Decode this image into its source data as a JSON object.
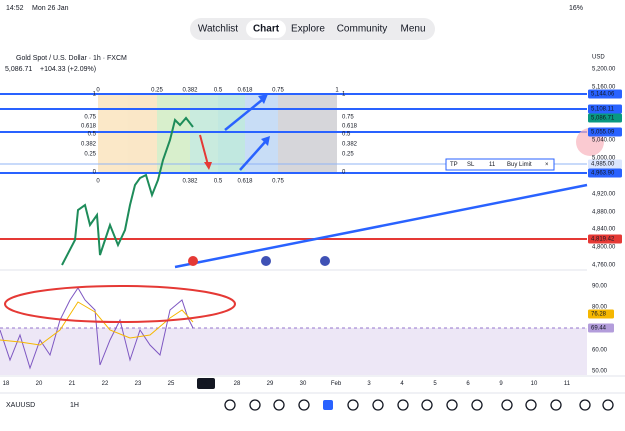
{
  "status_bar": {
    "time": "14:52",
    "date": "Mon 26 Jan",
    "battery": "16%"
  },
  "nav_tabs": [
    "Watchlist",
    "Chart",
    "Explore",
    "Community",
    "Menu"
  ],
  "header": {
    "symbol": "Gold Spot / U.S. Dollar · 1h · FXCM",
    "price": "5,086.71",
    "change": "+104.33 (+2.09%)",
    "currency": "USD"
  },
  "price_axis": [
    "5,200.00",
    "5,160.00",
    "5,040.00",
    "5,000.00",
    "4,920.00",
    "4,880.00",
    "4,840.00",
    "4,800.00",
    "4,760.00"
  ],
  "price_tags": [
    "5,144.06",
    "5,108.11",
    "5,086.71",
    "5,055.09",
    "4,985.00",
    "4,963.90",
    "4,819.42"
  ],
  "fib_top": [
    "0",
    "0.25",
    "0.382",
    "0.5",
    "0.618",
    "0.75",
    "1"
  ],
  "fib_side": [
    "1",
    "0.75",
    "0.618",
    "0.5",
    "0.382",
    "0.25",
    "0"
  ],
  "fib_bottom": [
    "0",
    "0.382",
    "0.5",
    "0.618",
    "0.75"
  ],
  "order": {
    "tp": "TP",
    "sl": "SL",
    "qty": "11",
    "type": "Buy Limit",
    "close": "×"
  },
  "indicator_axis": [
    "90.00",
    "80.00",
    "60.00",
    "50.00"
  ],
  "indicator_tags": [
    "76.28",
    "69.44"
  ],
  "time_axis": [
    "18",
    "20",
    "21",
    "22",
    "23",
    "25",
    "26",
    "28",
    "29",
    "30",
    "Feb",
    "3",
    "4",
    "5",
    "6",
    "9",
    "10",
    "11"
  ],
  "footer": {
    "ticker": "XAUUSD",
    "interval": "1H"
  }
}
